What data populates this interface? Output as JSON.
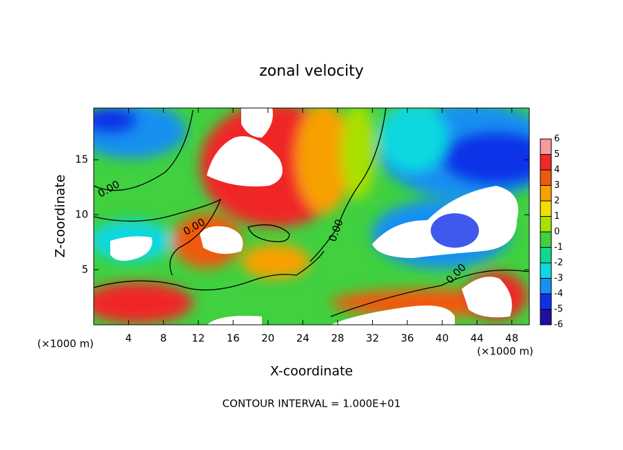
{
  "chart_data": {
    "type": "contour",
    "title": "zonal velocity",
    "xlabel": "X-coordinate",
    "ylabel": "Z-coordinate",
    "x_unit": "(×1000 m)",
    "y_unit": "(×1000 m)",
    "footer": "CONTOUR INTERVAL = 1.000E+01",
    "contour_labels": [
      "0.00",
      "0.00",
      "0.00",
      "0.00"
    ],
    "xlim": [
      0,
      50
    ],
    "xticks": [
      4,
      8,
      12,
      16,
      20,
      24,
      28,
      32,
      36,
      40,
      44,
      48
    ],
    "ylim": [
      0,
      19.7
    ],
    "yticks": [
      5,
      10,
      15
    ],
    "colorbar": {
      "lim": [
        -6,
        6
      ],
      "ticks": [
        6,
        5,
        4,
        3,
        2,
        1,
        0,
        -1,
        -2,
        -3,
        -4,
        -5,
        -6
      ],
      "colors": [
        "#f49a9a",
        "#f02828",
        "#f05a10",
        "#f8a000",
        "#f0e000",
        "#a8e000",
        "#40d040",
        "#10d890",
        "#10d8e0",
        "#1890f0",
        "#1030e8",
        "#2010a0"
      ]
    }
  }
}
